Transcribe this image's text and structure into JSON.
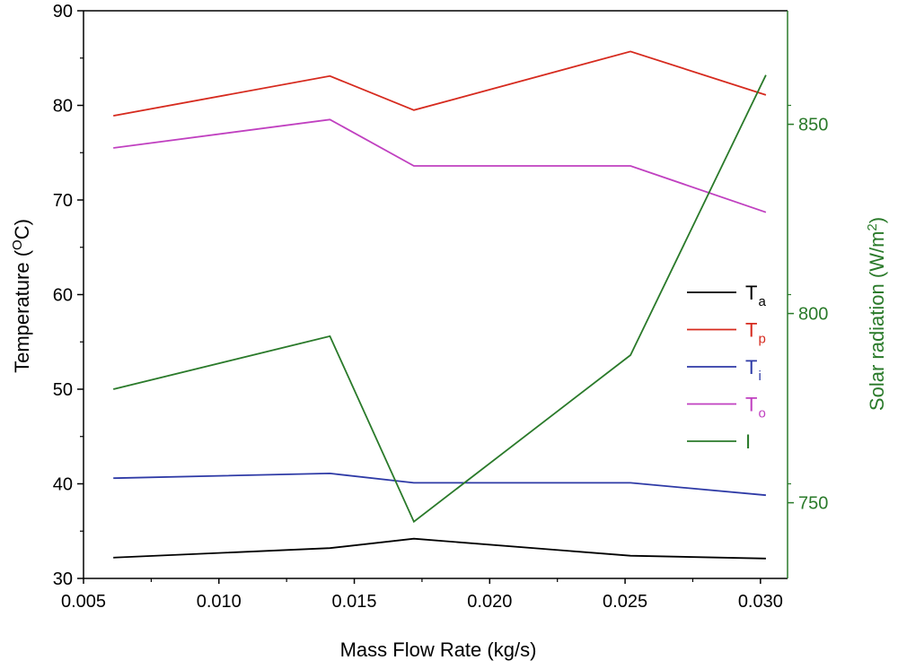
{
  "chart_data": {
    "type": "line",
    "xlabel": "Mass Flow Rate (kg/s)",
    "ylabel": "Temperature (",
    "ylabel_sup": "O",
    "ylabel_tail": "C)",
    "y2label": "Solar radiation (W/m",
    "y2label_sup": "2",
    "y2label_tail": ")",
    "xlim": [
      0.005,
      0.031
    ],
    "ylim": [
      30,
      90
    ],
    "y2lim": [
      730,
      880
    ],
    "x": [
      0.0061,
      0.0141,
      0.0172,
      0.0252,
      0.0302
    ],
    "xticks": [
      0.005,
      0.01,
      0.015,
      0.02,
      0.025,
      0.03
    ],
    "xtick_labels": [
      "0.005",
      "0.010",
      "0.015",
      "0.020",
      "0.025",
      "0.030"
    ],
    "yticks": [
      30,
      40,
      50,
      60,
      70,
      80,
      90
    ],
    "ytick_labels": [
      "30",
      "40",
      "50",
      "60",
      "70",
      "80",
      "90"
    ],
    "y2ticks": [
      750,
      800,
      850
    ],
    "y2tick_labels": [
      "750",
      "800",
      "850"
    ],
    "series": [
      {
        "name": "T",
        "sub": "a",
        "axis": "left",
        "color": "#000000",
        "values": [
          32.2,
          33.2,
          34.2,
          32.4,
          32.1
        ]
      },
      {
        "name": "T",
        "sub": "p",
        "axis": "left",
        "color": "#d62a1e",
        "values": [
          78.9,
          83.1,
          79.5,
          85.7,
          81.1
        ]
      },
      {
        "name": "T",
        "sub": "i",
        "axis": "left",
        "color": "#2e3aa6",
        "values": [
          40.6,
          41.1,
          40.1,
          40.1,
          38.8
        ]
      },
      {
        "name": "T",
        "sub": "o",
        "axis": "left",
        "color": "#c040c0",
        "values": [
          75.5,
          78.5,
          73.6,
          73.6,
          68.7
        ]
      },
      {
        "name": "I",
        "sub": "",
        "axis": "right",
        "color": "#2a7a2a",
        "values": [
          780,
          794,
          745,
          789,
          863
        ]
      }
    ],
    "legend_position": "center-right",
    "right_axis_color": "#2a7a2a"
  }
}
